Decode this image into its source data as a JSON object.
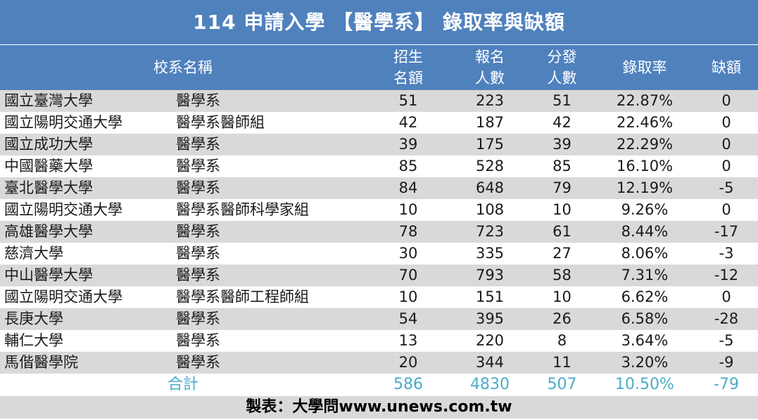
{
  "title": "114 申請入學 【醫學系】 錄取率與缺額",
  "headers": {
    "name": "校系名稱",
    "quota_l1": "招生",
    "quota_l2": "名額",
    "applicants_l1": "報名",
    "applicants_l2": "人數",
    "assigned_l1": "分發",
    "assigned_l2": "人數",
    "rate": "錄取率",
    "vacancy": "缺額"
  },
  "rows": [
    {
      "school": "國立臺灣大學",
      "dept": "醫學系",
      "quota": "51",
      "applicants": "223",
      "assigned": "51",
      "rate": "22.87%",
      "vacancy": "0"
    },
    {
      "school": "國立陽明交通大學",
      "dept": "醫學系醫師組",
      "quota": "42",
      "applicants": "187",
      "assigned": "42",
      "rate": "22.46%",
      "vacancy": "0"
    },
    {
      "school": "國立成功大學",
      "dept": "醫學系",
      "quota": "39",
      "applicants": "175",
      "assigned": "39",
      "rate": "22.29%",
      "vacancy": "0"
    },
    {
      "school": "中國醫藥大學",
      "dept": "醫學系",
      "quota": "85",
      "applicants": "528",
      "assigned": "85",
      "rate": "16.10%",
      "vacancy": "0"
    },
    {
      "school": "臺北醫學大學",
      "dept": "醫學系",
      "quota": "84",
      "applicants": "648",
      "assigned": "79",
      "rate": "12.19%",
      "vacancy": "-5"
    },
    {
      "school": "國立陽明交通大學",
      "dept": "醫學系醫師科學家組",
      "quota": "10",
      "applicants": "108",
      "assigned": "10",
      "rate": "9.26%",
      "vacancy": "0"
    },
    {
      "school": "高雄醫學大學",
      "dept": "醫學系",
      "quota": "78",
      "applicants": "723",
      "assigned": "61",
      "rate": "8.44%",
      "vacancy": "-17"
    },
    {
      "school": "慈濟大學",
      "dept": "醫學系",
      "quota": "30",
      "applicants": "335",
      "assigned": "27",
      "rate": "8.06%",
      "vacancy": "-3"
    },
    {
      "school": "中山醫學大學",
      "dept": "醫學系",
      "quota": "70",
      "applicants": "793",
      "assigned": "58",
      "rate": "7.31%",
      "vacancy": "-12"
    },
    {
      "school": "國立陽明交通大學",
      "dept": "醫學系醫師工程師組",
      "quota": "10",
      "applicants": "151",
      "assigned": "10",
      "rate": "6.62%",
      "vacancy": "0"
    },
    {
      "school": "長庚大學",
      "dept": "醫學系",
      "quota": "54",
      "applicants": "395",
      "assigned": "26",
      "rate": "6.58%",
      "vacancy": "-28"
    },
    {
      "school": "輔仁大學",
      "dept": "醫學系",
      "quota": "13",
      "applicants": "220",
      "assigned": "8",
      "rate": "3.64%",
      "vacancy": "-5"
    },
    {
      "school": "馬偕醫學院",
      "dept": "醫學系",
      "quota": "20",
      "applicants": "344",
      "assigned": "11",
      "rate": "3.20%",
      "vacancy": "-9"
    }
  ],
  "total": {
    "label": "合計",
    "quota": "586",
    "applicants": "4830",
    "assigned": "507",
    "rate": "10.50%",
    "vacancy": "-79"
  },
  "footer": "製表：大學問www.unews.com.tw",
  "colors": {
    "header_bg": "#4f81bd",
    "band_gray": "#d9d9d9",
    "total_text": "#4bacc6"
  }
}
